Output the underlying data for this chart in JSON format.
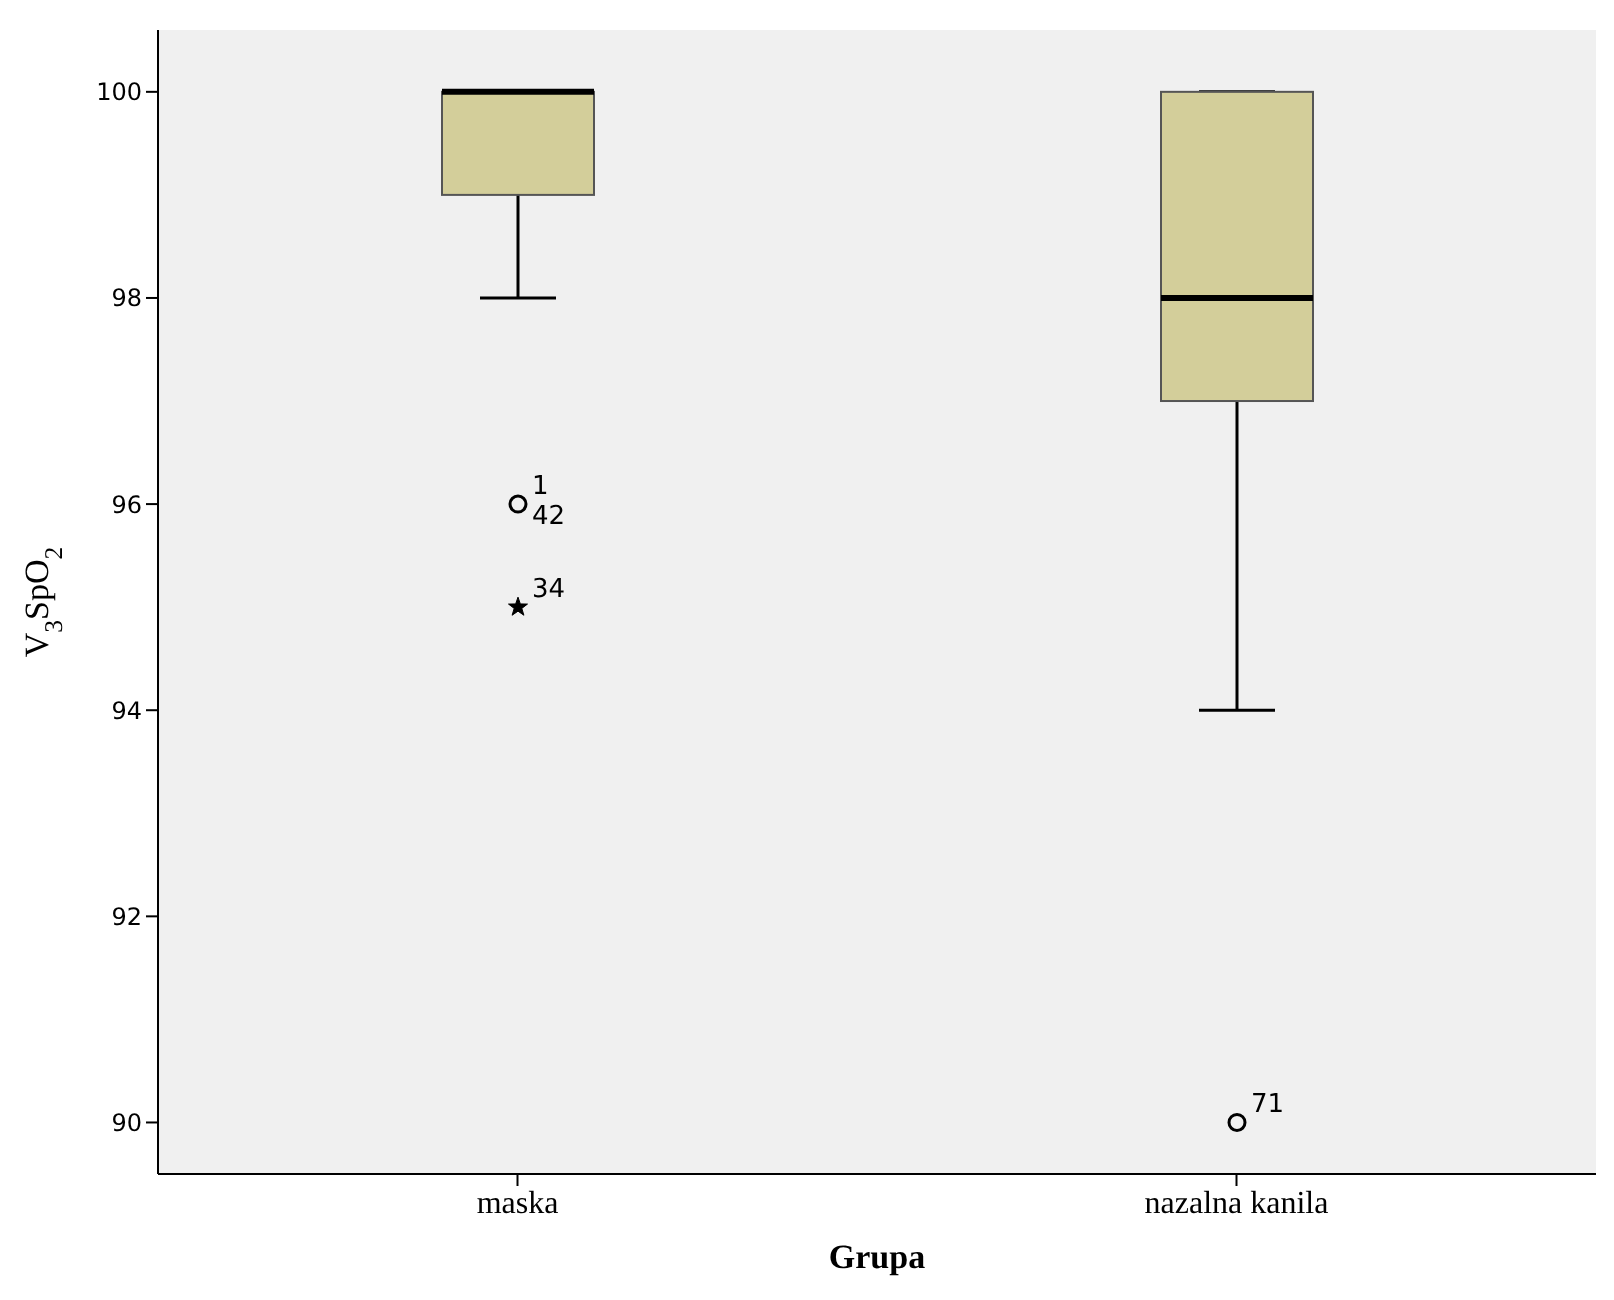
{
  "chart_data": {
    "type": "box",
    "xlabel": "Grupa",
    "ylabel": "V$_{3}$SpO$_{2}$",
    "categories": [
      "maska",
      "nazalna kanila"
    ],
    "boxes": [
      {
        "low": 98,
        "q1": 99,
        "median": 100,
        "q3": 100,
        "high": 100
      },
      {
        "low": 94,
        "q1": 97,
        "median": 98,
        "q3": 100,
        "high": 100
      }
    ],
    "color": "#d3ce9a",
    "series": [
      {
        "type": "scatter",
        "marker": "circle",
        "color": "#000000",
        "x": [
          "maska",
          "nazalna kanila"
        ],
        "values": [
          96,
          90
        ]
      },
      {
        "type": "scatter",
        "marker": "star",
        "color": "#000000",
        "x": [
          "maska"
        ],
        "values": [
          95
        ]
      }
    ],
    "ylim": [
      89.5,
      100.6
    ],
    "yticks": [
      90,
      92,
      94,
      96,
      98,
      100
    ],
    "grid": false,
    "annotations": [
      {
        "text": "1",
        "x": "maska",
        "y": 96
      },
      {
        "text": "42",
        "x": "maska",
        "y": 96
      },
      {
        "text": "34",
        "x": "maska",
        "y": 95
      },
      {
        "text": "71",
        "x": "nazalna kanila",
        "y": 90
      }
    ]
  }
}
